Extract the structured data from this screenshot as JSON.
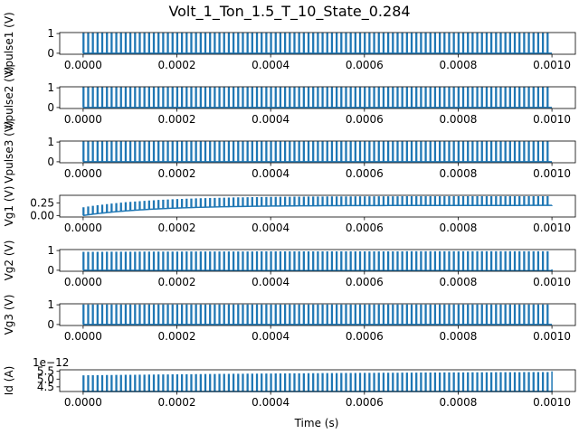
{
  "figure": {
    "title": "Volt_1_Ton_1.5_T_10_State_0.284",
    "xlabel": "Time (s)"
  },
  "style": {
    "line_color": "#1f77b4",
    "axes_color": "#000000",
    "background": "#ffffff"
  },
  "chart_data": [
    {
      "type": "line",
      "ylabel": "Vpulse1 (V)",
      "xlim": [
        -5e-05,
        0.00105
      ],
      "ylim": [
        -0.05,
        1.05
      ],
      "xticks": [
        "0.0000",
        "0.0002",
        "0.0004",
        "0.0006",
        "0.0008",
        "0.0010"
      ],
      "yticks": [
        "0",
        "1"
      ],
      "signal": {
        "kind": "pulse",
        "t_start": 0,
        "t_end": 0.001,
        "cycles": 100,
        "duty": 0.15,
        "high": [
          1,
          1
        ],
        "low": [
          0,
          0
        ],
        "tail": 0
      }
    },
    {
      "type": "line",
      "ylabel": "Vpulse2 (V)",
      "xlim": [
        -5e-05,
        0.00105
      ],
      "ylim": [
        -0.05,
        1.05
      ],
      "xticks": [
        "0.0000",
        "0.0002",
        "0.0004",
        "0.0006",
        "0.0008",
        "0.0010"
      ],
      "yticks": [
        "0",
        "1"
      ],
      "signal": {
        "kind": "pulse",
        "t_start": 0,
        "t_end": 0.001,
        "cycles": 100,
        "duty": 0.15,
        "high": [
          1,
          1
        ],
        "low": [
          0,
          0
        ],
        "tail": 0
      }
    },
    {
      "type": "line",
      "ylabel": "Vpulse3 (V)",
      "xlim": [
        -5e-05,
        0.00105
      ],
      "ylim": [
        -0.05,
        1.05
      ],
      "xticks": [
        "0.0000",
        "0.0002",
        "0.0004",
        "0.0006",
        "0.0008",
        "0.0010"
      ],
      "yticks": [
        "0",
        "1"
      ],
      "signal": {
        "kind": "pulse",
        "t_start": 0,
        "t_end": 0.001,
        "cycles": 100,
        "duty": 0.15,
        "high": [
          1,
          1
        ],
        "low": [
          0,
          0
        ],
        "tail": 0
      }
    },
    {
      "type": "line",
      "ylabel": "Vg1 (V)",
      "xlim": [
        -5e-05,
        0.00105
      ],
      "ylim": [
        -0.03,
        0.4
      ],
      "xticks": [
        "0.0000",
        "0.0002",
        "0.0004",
        "0.0006",
        "0.0008",
        "0.0010"
      ],
      "yticks": [
        "0.00",
        "0.25"
      ],
      "signal": {
        "kind": "pulse",
        "t_start": 0,
        "t_end": 0.001,
        "cycles": 100,
        "duty": 0.15,
        "high": [
          0.15,
          0.37
        ],
        "low": [
          0.0,
          0.2
        ],
        "tau": 0.00015,
        "tail": 0.2
      }
    },
    {
      "type": "line",
      "ylabel": "Vg2 (V)",
      "xlim": [
        -5e-05,
        0.00105
      ],
      "ylim": [
        -0.05,
        1.05
      ],
      "xticks": [
        "0.0000",
        "0.0002",
        "0.0004",
        "0.0006",
        "0.0008",
        "0.0010"
      ],
      "yticks": [
        "0",
        "1"
      ],
      "signal": {
        "kind": "pulse",
        "t_start": 0,
        "t_end": 0.001,
        "cycles": 100,
        "duty": 0.15,
        "high": [
          0.9,
          0.93
        ],
        "low": [
          0.0,
          -0.02
        ],
        "tau": 0.0003,
        "tail": 0.05
      }
    },
    {
      "type": "line",
      "ylabel": "Vg3 (V)",
      "xlim": [
        -5e-05,
        0.00105
      ],
      "ylim": [
        -0.05,
        1.05
      ],
      "xticks": [
        "0.0000",
        "0.0002",
        "0.0004",
        "0.0006",
        "0.0008",
        "0.0010"
      ],
      "yticks": [
        "0",
        "1"
      ],
      "signal": {
        "kind": "pulse",
        "t_start": 0,
        "t_end": 0.001,
        "cycles": 100,
        "duty": 0.15,
        "high": [
          0.98,
          0.98
        ],
        "low": [
          0.0,
          0.0
        ],
        "tail": 0
      }
    },
    {
      "type": "line",
      "ylabel": "Id (A)",
      "offset_text": "1e−12",
      "xlim": [
        -5e-05,
        0.00105
      ],
      "ylim": [
        4.2,
        5.6
      ],
      "xticks": [
        "0.0000",
        "0.0002",
        "0.0004",
        "0.0006",
        "0.0008",
        "0.0010"
      ],
      "yticks": [
        "4.5",
        "5.0",
        "5.5"
      ],
      "signal": {
        "kind": "pulse",
        "t_start": 0,
        "t_end": 0.001,
        "cycles": 100,
        "duty": 0.15,
        "high": [
          5.2,
          5.5
        ],
        "low": [
          4.2,
          4.2
        ],
        "tau": 0.0008,
        "tail": 5.5
      }
    }
  ]
}
